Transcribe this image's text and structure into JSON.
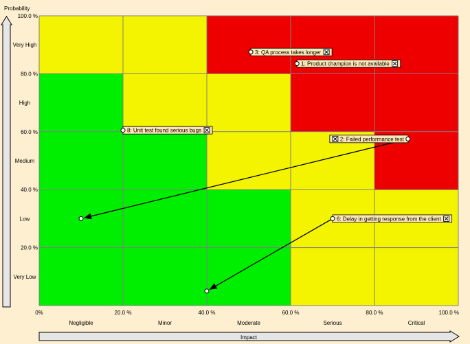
{
  "axes": {
    "y_title": "Probability",
    "x_title": "Impact"
  },
  "chart_data": {
    "type": "scatter",
    "title": "",
    "xlabel": "Impact",
    "ylabel": "Probability",
    "xlim": [
      0,
      100
    ],
    "ylim": [
      0,
      100
    ],
    "x_ticks": [
      "0%",
      "20.0 %",
      "40.0 %",
      "60.0 %",
      "80.0 %",
      "100.0 %"
    ],
    "y_ticks": [
      "20.0 %",
      "40.0 %",
      "60.0 %",
      "80.0 %",
      "100.0 %"
    ],
    "x_categories": [
      "Negligible",
      "Minor",
      "Moderate",
      "Serious",
      "Critical"
    ],
    "y_categories": [
      "Very Low",
      "Low",
      "Medium",
      "High",
      "Very High"
    ],
    "colors": {
      "green": "#00ee00",
      "yellow": "#f4f400",
      "red": "#ee0000",
      "grid": "#808080"
    },
    "zones": [
      [
        "green",
        "green",
        "green",
        "yellow",
        "yellow"
      ],
      [
        "green",
        "green",
        "green",
        "yellow",
        "yellow"
      ],
      [
        "green",
        "green",
        "yellow",
        "yellow",
        "red"
      ],
      [
        "green",
        "yellow",
        "yellow",
        "red",
        "red"
      ],
      [
        "yellow",
        "yellow",
        "red",
        "red",
        "red"
      ]
    ],
    "risks": [
      {
        "label": "3: QA process takes longer",
        "x": 50.5,
        "y": 87.5,
        "side": "right"
      },
      {
        "label": "1: Product champion is not available",
        "x": 61.5,
        "y": 83.5,
        "side": "right"
      },
      {
        "label": "8: Unit test found serious bugs",
        "x": 20,
        "y": 60.5,
        "side": "right"
      },
      {
        "label": "2: Failed performance test",
        "x": 88,
        "y": 57.5,
        "side": "left",
        "to_x": 10,
        "to_y": 30
      },
      {
        "label": "6: Delay in getting response from the client",
        "x": 70,
        "y": 30,
        "side": "right",
        "to_x": 40,
        "to_y": 5
      }
    ]
  }
}
